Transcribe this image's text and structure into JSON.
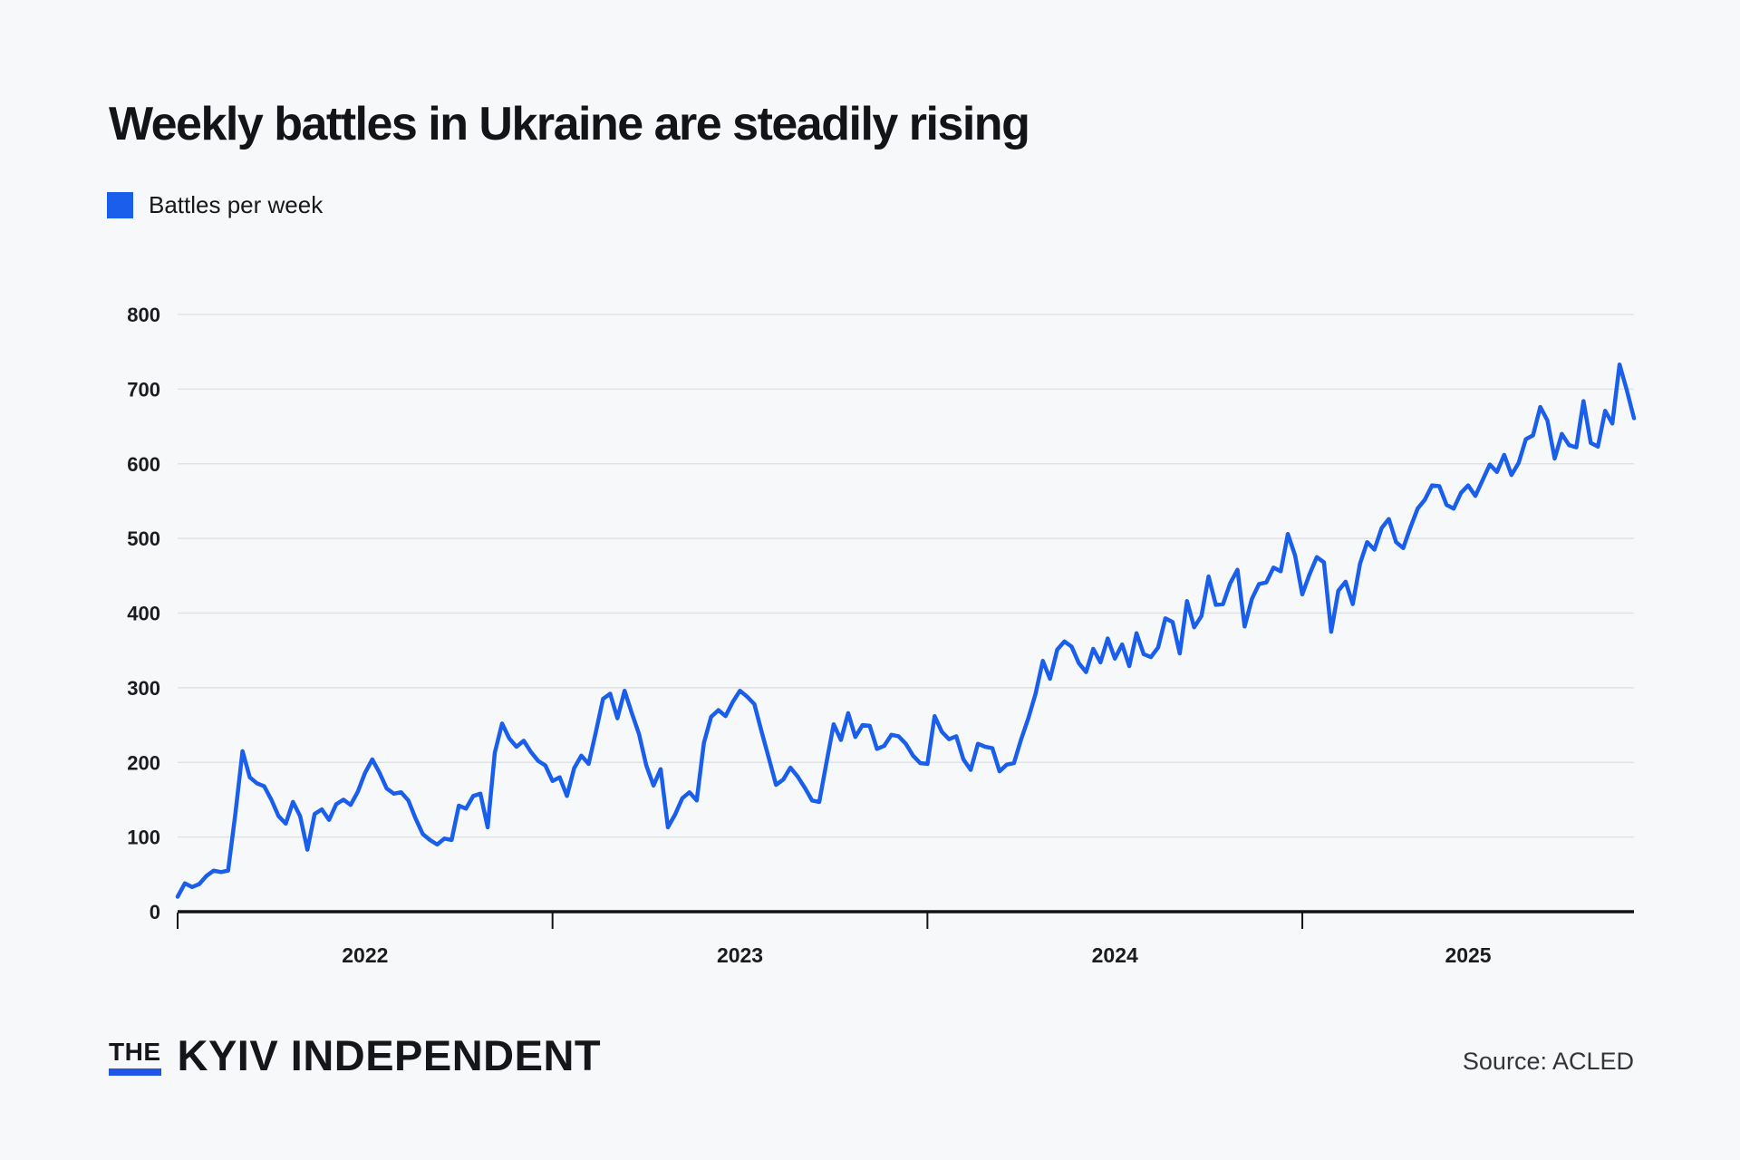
{
  "page": {
    "background": "#f7f8fa"
  },
  "header": {
    "title": "Weekly battles in Ukraine are steadily rising"
  },
  "legend": {
    "label": "Battles per week",
    "swatch_color": "#1a5eec"
  },
  "footer": {
    "logo_the": "THE",
    "logo_name": "KYIV INDEPENDENT",
    "source": "Source: ACLED"
  },
  "chart_data": {
    "type": "line",
    "title": "Weekly battles in Ukraine are steadily rising",
    "xlabel": "",
    "ylabel": "",
    "grid": "horizontal",
    "legend_position": "top-left",
    "x": {
      "unit": "week",
      "start": "2022-W01",
      "weeks_per_year": 52,
      "tick_labels": [
        "2022",
        "2023",
        "2024",
        "2025"
      ],
      "tick_week_indices": [
        0,
        52,
        104,
        156
      ]
    },
    "y": {
      "range": [
        0,
        800
      ],
      "ticks": [
        0,
        100,
        200,
        300,
        400,
        500,
        600,
        700,
        800
      ]
    },
    "series": [
      {
        "name": "Battles per week",
        "color": "#1a5eec",
        "values": [
          20,
          38,
          33,
          37,
          48,
          55,
          53,
          55,
          130,
          215,
          180,
          172,
          168,
          150,
          128,
          118,
          147,
          128,
          83,
          131,
          137,
          123,
          144,
          150,
          143,
          161,
          186,
          204,
          186,
          165,
          158,
          160,
          149,
          125,
          104,
          96,
          90,
          98,
          96,
          142,
          138,
          155,
          158,
          113,
          213,
          252,
          232,
          221,
          229,
          214,
          202,
          196,
          175,
          180,
          155,
          192,
          209,
          198,
          240,
          285,
          292,
          259,
          296,
          266,
          238,
          196,
          169,
          191,
          113,
          130,
          152,
          160,
          149,
          226,
          261,
          270,
          262,
          281,
          296,
          288,
          278,
          241,
          206,
          170,
          177,
          193,
          181,
          166,
          149,
          147,
          200,
          251,
          230,
          266,
          234,
          250,
          249,
          218,
          222,
          237,
          235,
          225,
          209,
          199,
          198,
          262,
          241,
          231,
          235,
          204,
          190,
          225,
          221,
          219,
          188,
          197,
          199,
          231,
          259,
          292,
          336,
          312,
          351,
          362,
          355,
          333,
          321,
          352,
          334,
          366,
          339,
          358,
          329,
          373,
          345,
          341,
          354,
          393,
          388,
          346,
          416,
          381,
          396,
          449,
          411,
          412,
          440,
          458,
          382,
          419,
          439,
          441,
          461,
          456,
          506,
          477,
          425,
          452,
          475,
          468,
          375,
          430,
          442,
          412,
          466,
          495,
          485,
          514,
          526,
          495,
          487,
          515,
          540,
          552,
          571,
          570,
          545,
          540,
          561,
          571,
          557,
          578,
          599,
          589,
          612,
          585,
          601,
          633,
          638,
          676,
          658,
          607,
          640,
          625,
          622,
          684,
          628,
          623,
          671,
          654,
          733,
          699,
          661
        ]
      }
    ],
    "style": {
      "line_width": 4.5,
      "gridline_color": "#e0e2e5",
      "axis_color": "#121316",
      "tick_label_color": "#1b1c1f"
    }
  }
}
